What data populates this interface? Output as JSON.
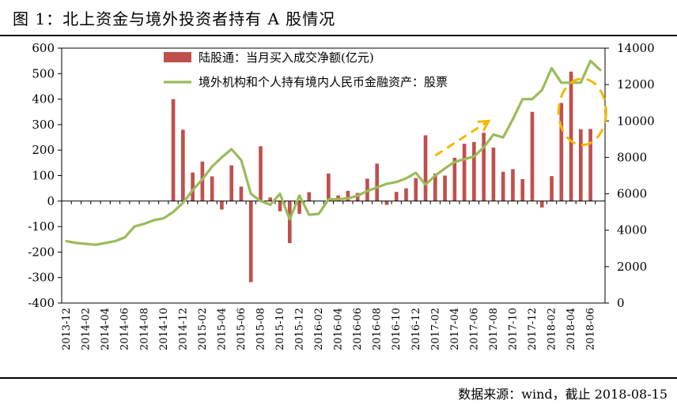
{
  "figure": {
    "title": "图 1：北上资金与境外投资者持有 A 股情况",
    "source": "数据来源：wind，截止 2018-08-15"
  },
  "colors": {
    "bar": "#c0504d",
    "line": "#9bbb59",
    "annotation": "#f5b800",
    "axis": "#000000"
  },
  "chart_data": {
    "type": "bar+line",
    "categories": [
      "2013-12",
      "2014-01",
      "2014-02",
      "2014-03",
      "2014-04",
      "2014-05",
      "2014-06",
      "2014-07",
      "2014-08",
      "2014-09",
      "2014-10",
      "2014-11",
      "2014-12",
      "2015-01",
      "2015-02",
      "2015-03",
      "2015-04",
      "2015-05",
      "2015-06",
      "2015-07",
      "2015-08",
      "2015-09",
      "2015-10",
      "2015-11",
      "2015-12",
      "2016-01",
      "2016-02",
      "2016-03",
      "2016-04",
      "2016-05",
      "2016-06",
      "2016-07",
      "2016-08",
      "2016-09",
      "2016-10",
      "2016-11",
      "2016-12",
      "2017-01",
      "2017-02",
      "2017-03",
      "2017-04",
      "2017-05",
      "2017-06",
      "2017-07",
      "2017-08",
      "2017-09",
      "2017-10",
      "2017-11",
      "2017-12",
      "2018-01",
      "2018-02",
      "2018-03",
      "2018-04",
      "2018-05",
      "2018-06",
      "2018-07"
    ],
    "x_tick_labels": [
      "2013-12",
      "2014-02",
      "2014-04",
      "2014-06",
      "2014-08",
      "2014-10",
      "2014-12",
      "2015-02",
      "2015-04",
      "2015-06",
      "2015-08",
      "2015-10",
      "2015-12",
      "2016-02",
      "2016-04",
      "2016-06",
      "2016-08",
      "2016-10",
      "2016-12",
      "2017-02",
      "2017-04",
      "2017-06",
      "2017-08",
      "2017-10",
      "2017-12",
      "2018-02",
      "2018-04",
      "2018-06"
    ],
    "series": [
      {
        "name": "陆股通：当月买入成交净额(亿元)",
        "type": "bar",
        "axis": "left",
        "values": [
          0,
          0,
          0,
          0,
          0,
          0,
          0,
          0,
          0,
          0,
          0,
          400,
          280,
          112,
          155,
          97,
          -33,
          140,
          57,
          -318,
          215,
          14,
          -40,
          -165,
          -50,
          35,
          0,
          108,
          22,
          40,
          32,
          88,
          147,
          -15,
          36,
          50,
          90,
          258,
          108,
          100,
          170,
          225,
          232,
          268,
          210,
          115,
          125,
          86,
          350,
          -25,
          98,
          385,
          508,
          282,
          283,
          0
        ]
      },
      {
        "name": "境外机构和个人持有境内人民币金融资产：股票",
        "type": "line",
        "axis": "right",
        "values": [
          3400,
          3300,
          3250,
          3200,
          3300,
          3400,
          3600,
          4200,
          4350,
          4550,
          4650,
          5000,
          5500,
          6200,
          6800,
          7500,
          8000,
          8450,
          7850,
          6000,
          5600,
          5400,
          6000,
          4600,
          5900,
          4850,
          4900,
          5700,
          5700,
          5750,
          5900,
          6150,
          6350,
          6550,
          6650,
          6850,
          7150,
          6500,
          7000,
          7400,
          7750,
          7900,
          8050,
          8550,
          9250,
          9100,
          10100,
          11200,
          11200,
          11700,
          12900,
          12100,
          12100,
          12100,
          13300,
          12800
        ]
      }
    ],
    "y_left": {
      "min": -400,
      "max": 600,
      "ticks": [
        "600",
        "500",
        "400",
        "300",
        "200",
        "100",
        "0",
        "-100",
        "-200",
        "-300",
        "-400"
      ]
    },
    "y_right": {
      "min": 0,
      "max": 14000,
      "ticks": [
        "14000",
        "12000",
        "10000",
        "8000",
        "6000",
        "4000",
        "2000",
        "0"
      ]
    },
    "legend": {
      "position": "top-center"
    },
    "annotations": [
      "dashed-arrow-rising-2017",
      "dashed-circle-2018-04-to-06"
    ]
  }
}
